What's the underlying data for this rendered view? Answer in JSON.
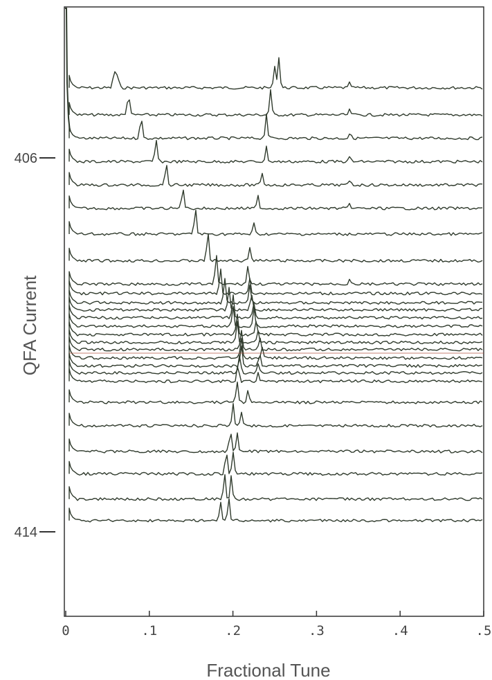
{
  "chart_data": {
    "type": "line",
    "title": "",
    "xlabel": "Fractional Tune",
    "ylabel": "QFA Current",
    "xlim": [
      0,
      0.5
    ],
    "xticks": [
      {
        "value": 0,
        "label": "0"
      },
      {
        "value": 0.1,
        "label": ".1"
      },
      {
        "value": 0.2,
        "label": ".2"
      },
      {
        "value": 0.3,
        "label": ".3"
      },
      {
        "value": 0.4,
        "label": ".4"
      },
      {
        "value": 0.5,
        "label": ".5"
      }
    ],
    "yticks": [
      {
        "value": 406,
        "label": "406"
      },
      {
        "value": 414,
        "label": "414"
      }
    ],
    "ylim": [
      403.5,
      416
    ],
    "grid": false,
    "series": [
      {
        "current": 404.5,
        "peaks": [
          [
            0.058,
            0.45
          ],
          [
            0.062,
            0.35
          ],
          [
            0.25,
            0.55
          ],
          [
            0.255,
            0.75
          ],
          [
            0.34,
            0.12
          ]
        ]
      },
      {
        "current": 405.08,
        "peaks": [
          [
            0.075,
            0.55
          ],
          [
            0.245,
            0.6
          ],
          [
            0.34,
            0.12
          ]
        ]
      },
      {
        "current": 405.58,
        "peaks": [
          [
            0.09,
            0.55
          ],
          [
            0.24,
            0.6
          ],
          [
            0.34,
            0.12
          ]
        ]
      },
      {
        "current": 406.08,
        "peaks": [
          [
            0.108,
            0.55
          ],
          [
            0.24,
            0.35
          ],
          [
            0.34,
            0.12
          ]
        ]
      },
      {
        "current": 406.58,
        "peaks": [
          [
            0.12,
            0.55
          ],
          [
            0.235,
            0.3
          ],
          [
            0.34,
            0.12
          ]
        ]
      },
      {
        "current": 407.08,
        "peaks": [
          [
            0.14,
            0.55
          ],
          [
            0.23,
            0.3
          ],
          [
            0.34,
            0.1
          ]
        ]
      },
      {
        "current": 407.63,
        "peaks": [
          [
            0.155,
            0.65
          ],
          [
            0.225,
            0.25
          ]
        ]
      },
      {
        "current": 408.2,
        "peaks": [
          [
            0.17,
            0.7
          ],
          [
            0.22,
            0.35
          ]
        ]
      },
      {
        "current": 408.7,
        "peaks": [
          [
            0.18,
            0.7
          ],
          [
            0.218,
            0.45
          ],
          [
            0.34,
            0.15
          ]
        ]
      },
      {
        "current": 408.9,
        "peaks": [
          [
            0.185,
            0.6
          ],
          [
            0.22,
            0.4
          ]
        ]
      },
      {
        "current": 409.1,
        "peaks": [
          [
            0.19,
            0.6
          ],
          [
            0.22,
            0.4
          ]
        ]
      },
      {
        "current": 409.25,
        "peaks": [
          [
            0.195,
            0.55
          ],
          [
            0.222,
            0.4
          ]
        ]
      },
      {
        "current": 409.42,
        "peaks": [
          [
            0.2,
            0.55
          ],
          [
            0.225,
            0.35
          ]
        ]
      },
      {
        "current": 409.6,
        "peaks": [
          [
            0.2,
            0.5
          ],
          [
            0.225,
            0.4
          ]
        ]
      },
      {
        "current": 409.78,
        "peaks": [
          [
            0.205,
            0.5
          ],
          [
            0.228,
            0.35
          ]
        ]
      },
      {
        "current": 409.95,
        "peaks": [
          [
            0.205,
            0.5
          ],
          [
            0.23,
            0.3
          ]
        ]
      },
      {
        "current": 410.1,
        "peaks": [
          [
            0.21,
            0.5
          ],
          [
            0.232,
            0.3
          ]
        ]
      },
      {
        "current": 410.28,
        "peaks": [
          [
            0.21,
            0.45
          ],
          [
            0.235,
            0.25
          ]
        ]
      },
      {
        "current": 410.45,
        "peaks": [
          [
            0.21,
            0.5
          ],
          [
            0.232,
            0.25
          ]
        ]
      },
      {
        "current": 410.6,
        "peaks": [
          [
            0.208,
            0.45
          ],
          [
            0.23,
            0.25
          ]
        ]
      },
      {
        "current": 410.78,
        "peaks": [
          [
            0.206,
            0.45
          ],
          [
            0.23,
            0.2
          ]
        ]
      },
      {
        "current": 411.23,
        "peaks": [
          [
            0.205,
            0.5
          ],
          [
            0.218,
            0.3
          ]
        ]
      },
      {
        "current": 411.73,
        "peaks": [
          [
            0.2,
            0.55
          ],
          [
            0.21,
            0.3
          ]
        ]
      },
      {
        "current": 412.28,
        "peaks": [
          [
            0.197,
            0.55
          ],
          [
            0.205,
            0.45
          ]
        ]
      },
      {
        "current": 412.76,
        "peaks": [
          [
            0.192,
            0.55
          ],
          [
            0.2,
            0.55
          ]
        ]
      },
      {
        "current": 413.3,
        "peaks": [
          [
            0.19,
            0.6
          ],
          [
            0.198,
            0.55
          ]
        ]
      },
      {
        "current": 413.76,
        "peaks": [
          [
            0.185,
            0.45
          ],
          [
            0.195,
            0.55
          ]
        ]
      }
    ],
    "colors": {
      "trace": "#2f3a2c",
      "frame": "#333333",
      "text": "#555555",
      "accent": "#b0503c"
    }
  }
}
